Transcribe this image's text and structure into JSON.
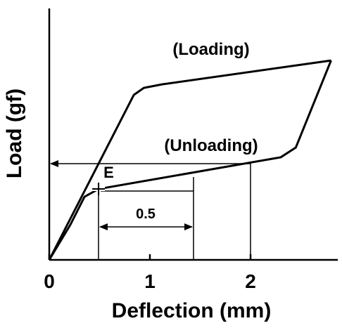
{
  "chart_data": {
    "type": "line",
    "x_label": "Deflection (mm)",
    "y_label": "Load (gf)",
    "xlim": [
      0,
      2.85
    ],
    "xticks": [
      0,
      1,
      2
    ],
    "ylim": [
      0,
      100
    ],
    "color": "#000000",
    "series": [
      {
        "name": "(Loading)",
        "x": [
          0,
          0.84,
          0.94,
          1.12,
          2.8
        ],
        "values": [
          0,
          65.6,
          68.4,
          69.8,
          79.3
        ]
      },
      {
        "name": "(Unloading)",
        "x": [
          2.8,
          2.45,
          2.3,
          0.49,
          0.35,
          0.21,
          0
        ],
        "values": [
          79.3,
          44.7,
          40.8,
          28.2,
          25.1,
          14,
          0
        ]
      }
    ],
    "annotations": [
      {
        "text": "E",
        "x": 0.49,
        "y": 28.2
      },
      {
        "text": "0.5"
      }
    ]
  }
}
